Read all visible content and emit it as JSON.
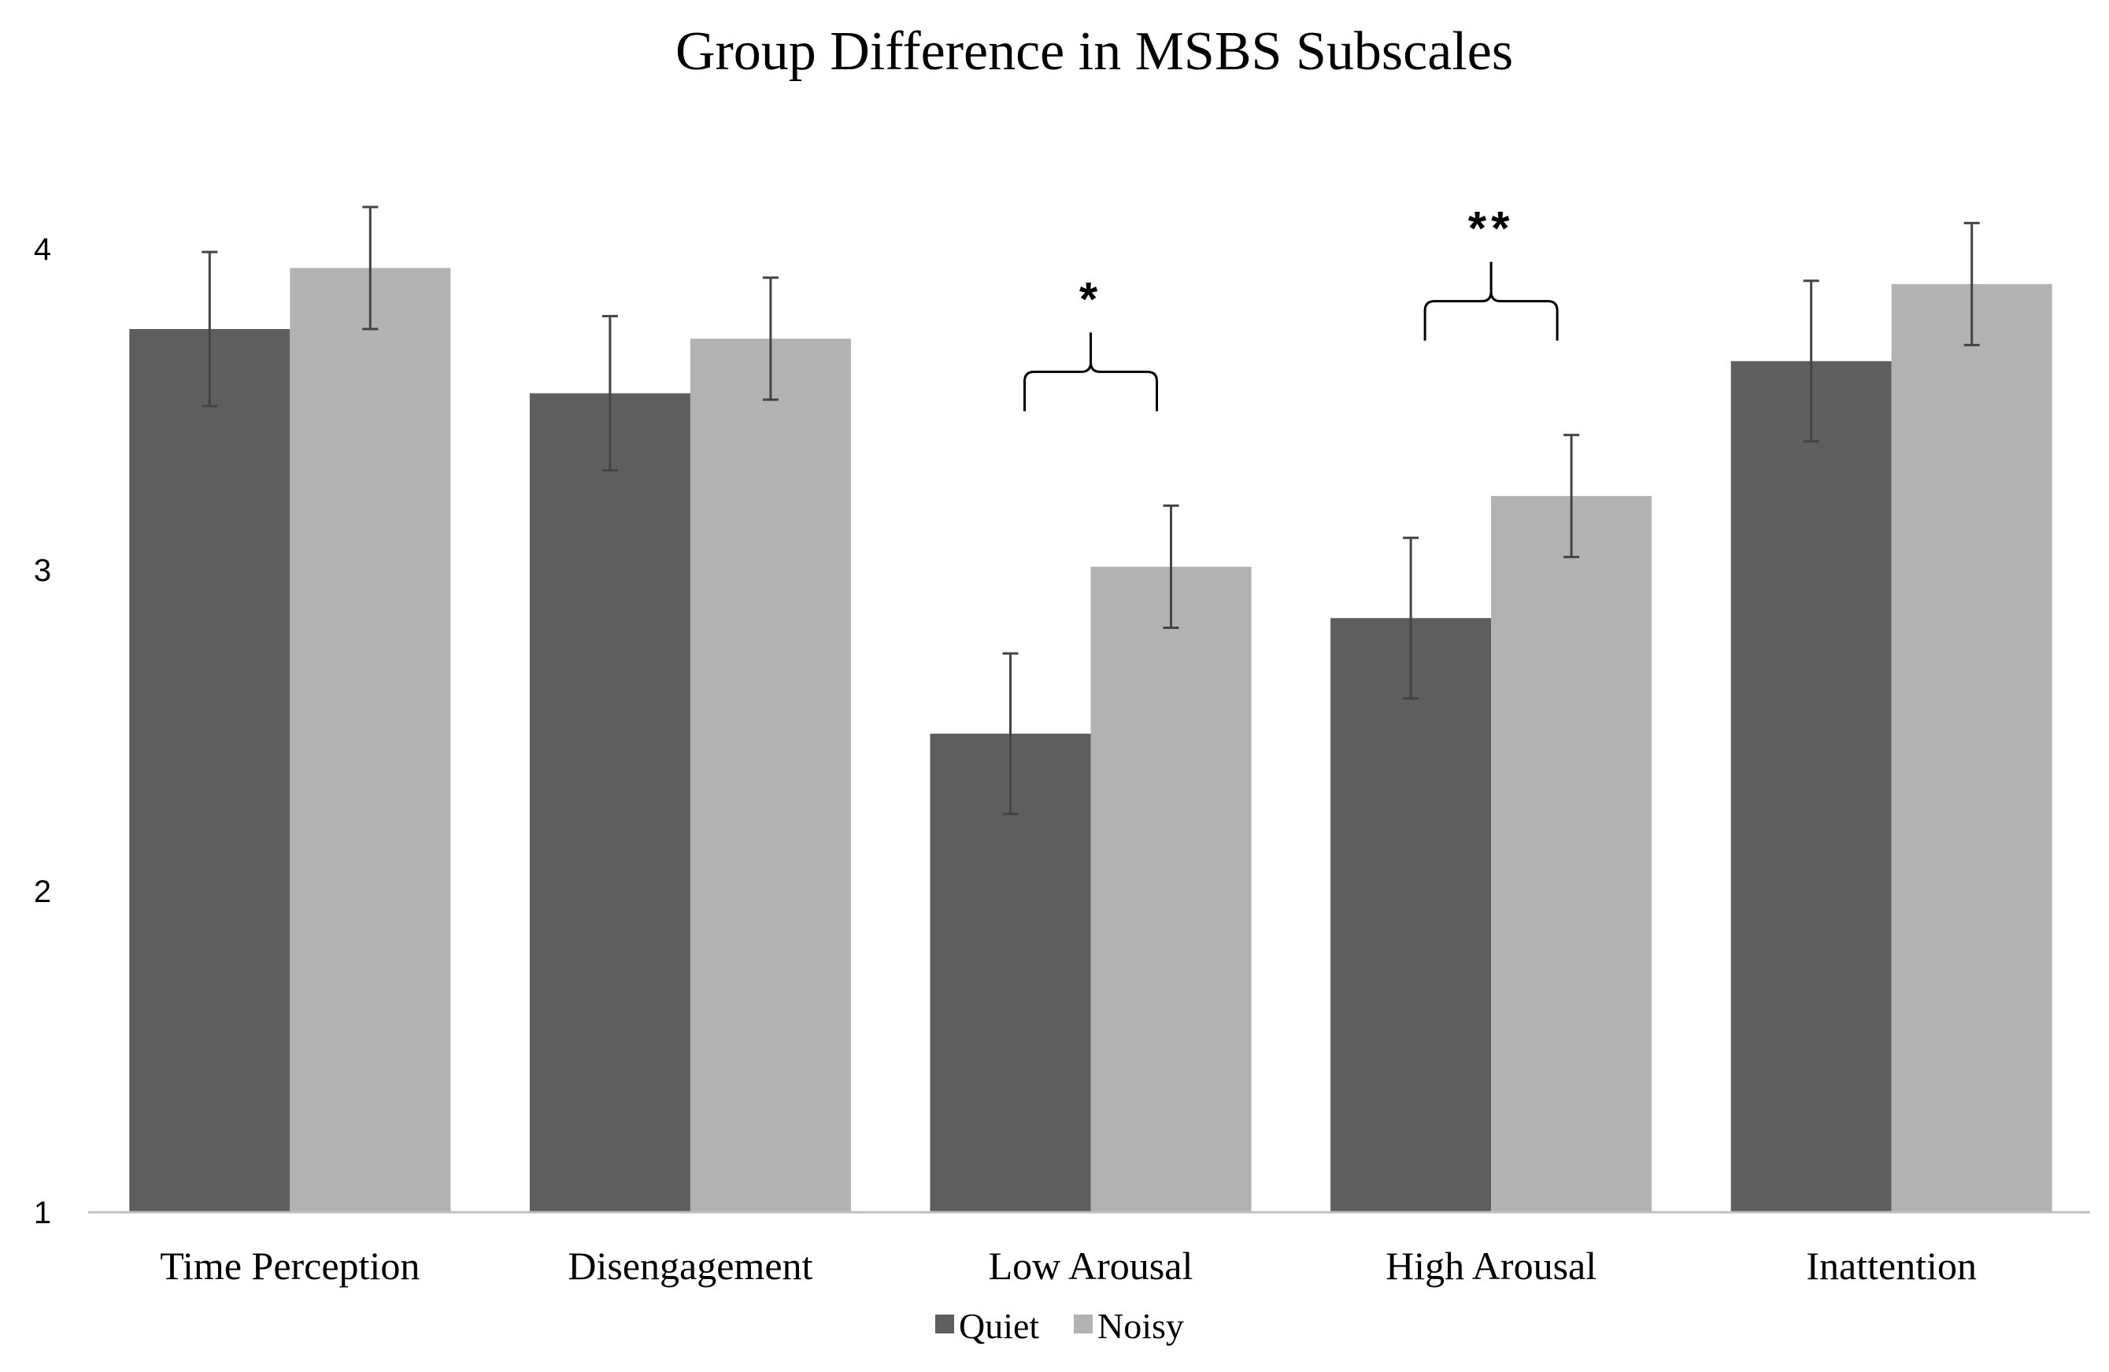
{
  "chart_data": {
    "type": "bar",
    "title": "Group Difference in MSBS Subscales",
    "xlabel": "",
    "ylabel": "",
    "ylim": [
      1,
      4
    ],
    "yticks": [
      1,
      2,
      3,
      4
    ],
    "grid": false,
    "legend_position": "bottom-center",
    "categories": [
      "Time Perception",
      "Disengagement",
      "Low Arousal",
      "High Arousal",
      "Inattention"
    ],
    "series": [
      {
        "name": "Quiet",
        "color": "#5e5e5e",
        "values": [
          3.75,
          3.55,
          2.49,
          2.85,
          3.65
        ],
        "error": [
          0.24,
          0.24,
          0.25,
          0.25,
          0.25
        ]
      },
      {
        "name": "Noisy",
        "color": "#b2b2b2",
        "values": [
          3.94,
          3.72,
          3.01,
          3.23,
          3.89
        ],
        "error": [
          0.19,
          0.19,
          0.19,
          0.19,
          0.19
        ]
      }
    ],
    "annotations": [
      {
        "category_index": 2,
        "label": "*"
      },
      {
        "category_index": 3,
        "label": "**"
      }
    ]
  }
}
